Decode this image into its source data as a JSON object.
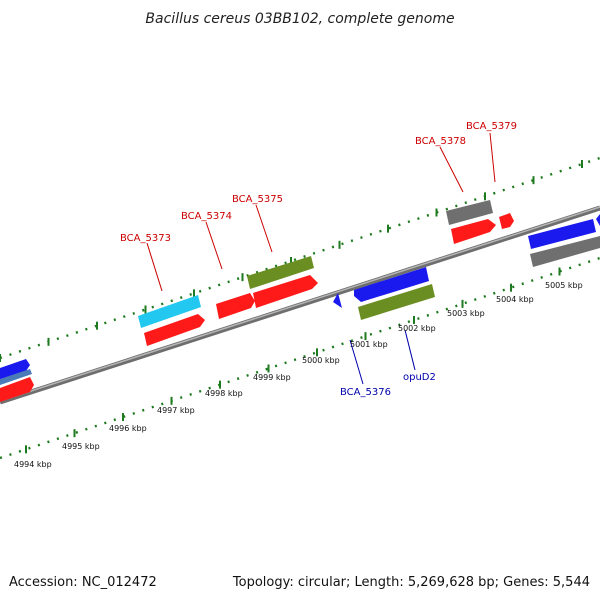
{
  "title": "Bacillus cereus 03BB102, complete genome",
  "footer": {
    "accession": "Accession: NC_012472",
    "summary": "Topology: circular; Length: 5,269,628 bp; Genes: 5,544"
  },
  "colors": {
    "label_forward": "#cc0000",
    "label_reverse": "#0000aa",
    "tick": "#1e7a1e",
    "backbone": "#8a8a8a",
    "gene_red": "#ff1a1a",
    "gene_blue": "#1a1aee",
    "gene_olive": "#6b8e23",
    "gene_cyan": "#22c8f0",
    "gene_gray": "#777777",
    "gene_steel": "#4a7ab8"
  },
  "scale_ticks": [
    "4994 kbp",
    "4995 kbp",
    "4996 kbp",
    "4997 kbp",
    "4998 kbp",
    "4999 kbp",
    "5000 kbp",
    "5001 kbp",
    "5002 kbp",
    "5003 kbp",
    "5004 kbp",
    "5005 kbp"
  ],
  "gene_labels": [
    {
      "id": "lbl-5373",
      "text": "BCA_5373",
      "strand": "forward"
    },
    {
      "id": "lbl-5374",
      "text": "BCA_5374",
      "strand": "forward"
    },
    {
      "id": "lbl-5375",
      "text": "BCA_5375",
      "strand": "forward"
    },
    {
      "id": "lbl-5378",
      "text": "BCA_5378",
      "strand": "forward"
    },
    {
      "id": "lbl-5379",
      "text": "BCA_5379",
      "strand": "forward"
    },
    {
      "id": "lbl-5376",
      "text": "BCA_5376",
      "strand": "reverse"
    },
    {
      "id": "lbl-opuD2",
      "text": "opuD2",
      "strand": "reverse"
    }
  ]
}
